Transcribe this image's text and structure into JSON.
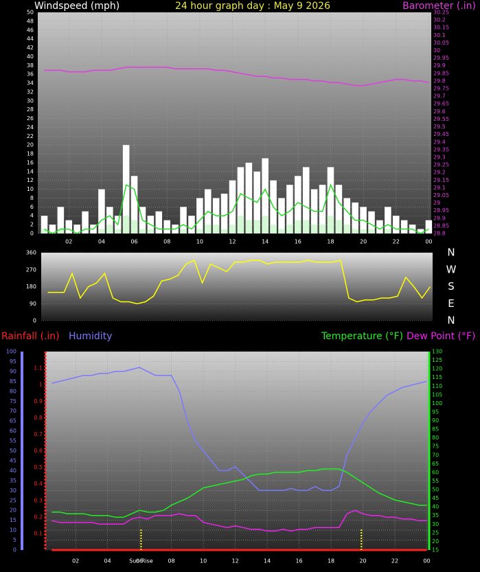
{
  "chart_data": [
    {
      "type": "line",
      "title": "24 hour graph day : May 9 2026",
      "ylabel": "Windspeed (mph)",
      "y2label": "Barometer (.in)",
      "grid": true,
      "xlim": [
        0.1,
        24.15
      ],
      "xticks": [
        {
          "value": 2,
          "label": "02"
        },
        {
          "value": 4,
          "label": "04"
        },
        {
          "value": 6,
          "label": "06"
        },
        {
          "value": 8,
          "label": "08"
        },
        10,
        12,
        14,
        16,
        18,
        20,
        22,
        {
          "value": 24,
          "label": "00"
        }
      ],
      "ylim": [
        0,
        50
      ],
      "yticks": [
        0,
        2,
        4,
        6,
        8,
        10,
        12,
        14,
        16,
        18,
        20,
        22,
        24,
        26,
        28,
        30,
        32,
        34,
        36,
        38,
        40,
        42,
        44,
        46,
        48,
        50
      ],
      "y2lim": [
        28.8,
        30.25
      ],
      "y2ticks": [
        28.8,
        28.85,
        28.9,
        28.95,
        29,
        29.05,
        29.1,
        29.15,
        29.2,
        29.25,
        29.3,
        29.35,
        29.4,
        29.45,
        29.5,
        29.55,
        29.6,
        29.65,
        29.7,
        29.75,
        29.8,
        29.85,
        29.9,
        29.95,
        30,
        30.05,
        30.1,
        30.15,
        30.2,
        30.25
      ],
      "x": [
        0.5,
        1,
        1.5,
        2,
        2.5,
        3,
        3.5,
        4,
        4.5,
        5,
        5.5,
        6,
        6.5,
        7,
        7.5,
        8,
        8.5,
        9,
        9.5,
        10,
        10.5,
        11,
        11.5,
        12,
        12.5,
        13,
        13.5,
        14,
        14.5,
        15,
        15.5,
        16,
        16.5,
        17,
        17.5,
        18,
        18.5,
        19,
        19.5,
        20,
        20.5,
        21,
        21.5,
        22,
        22.5,
        23,
        23.5,
        24
      ],
      "series": [
        {
          "color": "#ffffff",
          "style": "bars",
          "values": [
            4,
            2,
            6,
            3,
            2,
            5,
            2,
            10,
            6,
            4,
            20,
            13,
            6,
            4,
            5,
            3,
            2,
            6,
            4,
            8,
            10,
            8,
            9,
            12,
            15,
            16,
            14,
            17,
            12,
            8,
            11,
            13,
            15,
            10,
            11,
            15,
            11,
            8,
            7,
            6,
            5,
            3,
            6,
            4,
            3,
            2,
            1,
            3
          ]
        },
        {
          "color": "#d4f7d4",
          "style": "bars",
          "values": [
            1,
            0,
            1,
            0,
            0,
            0,
            0,
            1,
            2,
            1,
            4,
            3,
            1,
            1,
            0,
            0,
            0,
            1,
            0,
            1,
            2,
            2,
            1,
            2,
            4,
            3,
            3,
            4,
            2,
            1,
            2,
            3,
            3,
            2,
            2,
            4,
            3,
            2,
            1,
            1,
            1,
            0,
            1,
            0,
            0,
            0,
            0,
            0
          ]
        },
        {
          "color": "#22dd22",
          "style": "line",
          "values": [
            1,
            0,
            1,
            1,
            0,
            1,
            1,
            3,
            4,
            2,
            11,
            10,
            3,
            2,
            1,
            1,
            1,
            2,
            1,
            3,
            5,
            4,
            4,
            5,
            9,
            8,
            7,
            10,
            6,
            4,
            5,
            7,
            6,
            5,
            5,
            11,
            7,
            5,
            3,
            3,
            2,
            1,
            2,
            1,
            1,
            1,
            0,
            1
          ]
        },
        {
          "color": "#e03ce0",
          "style": "line",
          "axis": "y2",
          "values": [
            29.87,
            29.87,
            29.87,
            29.86,
            29.86,
            29.86,
            29.87,
            29.87,
            29.87,
            29.88,
            29.89,
            29.89,
            29.89,
            29.89,
            29.89,
            29.89,
            29.88,
            29.88,
            29.88,
            29.88,
            29.88,
            29.87,
            29.87,
            29.86,
            29.85,
            29.84,
            29.83,
            29.83,
            29.82,
            29.82,
            29.81,
            29.81,
            29.81,
            29.8,
            29.8,
            29.79,
            29.79,
            29.78,
            29.77,
            29.77,
            29.78,
            29.79,
            29.8,
            29.81,
            29.81,
            29.8,
            29.8,
            29.79
          ]
        }
      ]
    },
    {
      "type": "line",
      "grid": true,
      "xlim": [
        0.1,
        24.15
      ],
      "ylim": [
        0,
        360
      ],
      "yticks": [
        0,
        90,
        180,
        270,
        360
      ],
      "y2lim": [
        0,
        360
      ],
      "y2ticks": [
        {
          "value": 360,
          "label": "N"
        },
        {
          "value": 270,
          "label": "W"
        },
        {
          "value": 180,
          "label": "S"
        },
        {
          "value": 90,
          "label": "E"
        },
        {
          "value": 0,
          "label": "N"
        }
      ],
      "x": [
        0.5,
        1,
        1.5,
        2,
        2.5,
        3,
        3.5,
        4,
        4.5,
        5,
        5.5,
        6,
        6.5,
        7,
        7.5,
        8,
        8.5,
        9,
        9.5,
        10,
        10.5,
        11,
        11.5,
        12,
        12.5,
        13,
        13.5,
        14,
        14.5,
        15,
        15.5,
        16,
        16.5,
        17,
        17.5,
        18,
        18.5,
        19,
        19.5,
        20,
        20.5,
        21,
        21.5,
        22,
        22.5,
        23,
        23.5,
        24
      ],
      "series": [
        {
          "color": "#ffff00",
          "style": "line",
          "values": [
            150,
            150,
            150,
            250,
            120,
            180,
            200,
            250,
            120,
            100,
            100,
            90,
            100,
            130,
            210,
            220,
            240,
            300,
            320,
            200,
            300,
            280,
            260,
            310,
            310,
            320,
            320,
            300,
            310,
            310,
            310,
            310,
            320,
            310,
            310,
            310,
            320,
            120,
            100,
            110,
            110,
            120,
            120,
            130,
            230,
            180,
            120,
            180
          ]
        }
      ]
    },
    {
      "type": "line",
      "grid": true,
      "xlim": [
        0.1,
        24.15
      ],
      "xticks": [
        {
          "value": 2,
          "label": "02"
        },
        {
          "value": 4,
          "label": "04"
        },
        {
          "value": 6,
          "label": "06"
        },
        {
          "value": 8,
          "label": "08"
        },
        10,
        12,
        14,
        16,
        18,
        20,
        22,
        {
          "value": 24,
          "label": "00"
        }
      ],
      "ylim": [
        0,
        100
      ],
      "yticks": [
        0,
        5,
        10,
        15,
        20,
        25,
        30,
        35,
        40,
        45,
        50,
        55,
        60,
        65,
        70,
        75,
        80,
        85,
        90,
        95,
        100
      ],
      "y2lim": [
        15,
        130
      ],
      "y2ticks": [
        15,
        20,
        25,
        30,
        35,
        40,
        45,
        50,
        55,
        60,
        65,
        70,
        75,
        80,
        85,
        90,
        95,
        100,
        105,
        110,
        115,
        120,
        125,
        130
      ],
      "y3lim": [
        0,
        1.2
      ],
      "y3ticks": [
        0.1,
        0.2,
        0.3,
        0.4,
        0.5,
        0.6,
        0.7,
        0.8,
        0.9,
        1,
        1.1
      ],
      "annotations": [
        {
          "label": "Sun Rise",
          "x": 6.1
        },
        {
          "x": 19.9
        }
      ],
      "x": [
        0.5,
        1,
        1.5,
        2,
        2.5,
        3,
        3.5,
        4,
        4.5,
        5,
        5.5,
        6,
        6.5,
        7,
        7.5,
        8,
        8.5,
        9,
        9.5,
        10,
        10.5,
        11,
        11.5,
        12,
        12.5,
        13,
        13.5,
        14,
        14.5,
        15,
        15.5,
        16,
        16.5,
        17,
        17.5,
        18,
        18.5,
        19,
        19.5,
        20,
        20.5,
        21,
        21.5,
        22,
        22.5,
        23,
        23.5,
        24
      ],
      "series": [
        {
          "name": "Rainfall (.in)",
          "color": "#ff2020",
          "style": "line",
          "axis": "y3",
          "values": [
            0,
            0,
            0,
            0,
            0,
            0,
            0,
            0,
            0,
            0,
            0,
            0,
            0,
            0,
            0,
            0,
            0,
            0,
            0,
            0,
            0,
            0,
            0,
            0,
            0,
            0,
            0,
            0,
            0,
            0,
            0,
            0,
            0,
            0,
            0,
            0,
            0,
            0,
            0,
            0,
            0,
            0,
            0,
            0,
            0,
            0,
            0,
            0
          ]
        },
        {
          "name": "Humidity",
          "color": "#7a7aff",
          "style": "line",
          "values": [
            84,
            85,
            86,
            87,
            88,
            88,
            89,
            89,
            90,
            90,
            91,
            92,
            90,
            88,
            88,
            88,
            80,
            65,
            55,
            50,
            45,
            40,
            40,
            42,
            38,
            34,
            30,
            30,
            30,
            30,
            31,
            30,
            30,
            32,
            30,
            30,
            32,
            48,
            56,
            64,
            70,
            74,
            78,
            80,
            82,
            83,
            84,
            85
          ]
        },
        {
          "name": "Temperature (°F)",
          "color": "#22ee22",
          "style": "line",
          "axis": "y2",
          "values": [
            37,
            37,
            36,
            36,
            36,
            35,
            35,
            35,
            34,
            34,
            36,
            38,
            37,
            37,
            38,
            41,
            43,
            45,
            48,
            51,
            52,
            53,
            54,
            55,
            56,
            58,
            59,
            59,
            60,
            60,
            60,
            60,
            61,
            61,
            62,
            62,
            62,
            60,
            57,
            54,
            51,
            48,
            46,
            44,
            43,
            42,
            41,
            41
          ]
        },
        {
          "name": "Dew Point (°F)",
          "color": "#ee22ee",
          "style": "line",
          "axis": "y2",
          "values": [
            32,
            31,
            31,
            31,
            31,
            31,
            30,
            30,
            30,
            30,
            33,
            34,
            33,
            35,
            35,
            35,
            36,
            35,
            35,
            31,
            30,
            29,
            28,
            29,
            28,
            27,
            27,
            26,
            26,
            27,
            26,
            27,
            27,
            28,
            28,
            28,
            28,
            36,
            38,
            36,
            35,
            35,
            34,
            34,
            33,
            33,
            32,
            32
          ]
        }
      ]
    }
  ]
}
